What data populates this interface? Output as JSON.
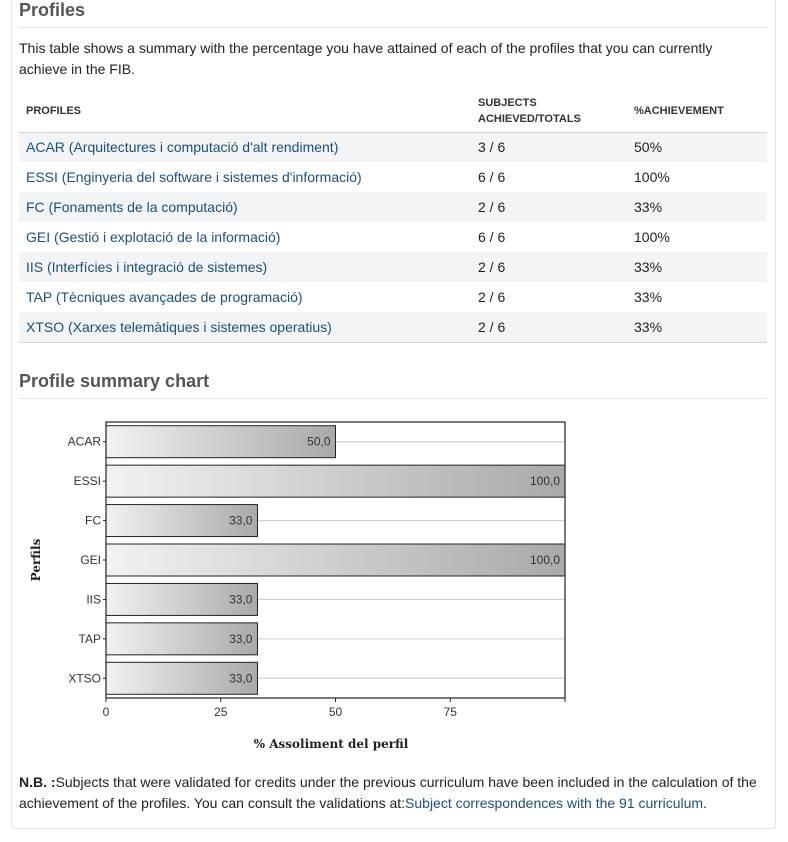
{
  "profiles_title": "Profiles",
  "intro_text": "This table shows a summary with the percentage you have attained of each of the profiles that you can currently achieve in the FIB.",
  "table": {
    "headers": {
      "profiles": "PROFILES",
      "subjects_line1": "SUBJECTS",
      "subjects_line2": "ACHIEVED/TOTALS",
      "achievement": "%ACHIEVEMENT"
    },
    "rows": [
      {
        "name": "ACAR (Arquitectures i computació d'alt rendiment)",
        "subjects": "3 / 6",
        "achievement": "50%"
      },
      {
        "name": "ESSI (Enginyeria del software i sistemes d'informació)",
        "subjects": "6 / 6",
        "achievement": "100%"
      },
      {
        "name": "FC (Fonaments de la computació)",
        "subjects": "2 / 6",
        "achievement": "33%"
      },
      {
        "name": "GEI (Gestió i explotació de la informació)",
        "subjects": "6 / 6",
        "achievement": "100%"
      },
      {
        "name": "IIS (Interfícies i integració de sistemes)",
        "subjects": "2 / 6",
        "achievement": "33%"
      },
      {
        "name": "TAP (Tècniques avançades de programació)",
        "subjects": "2 / 6",
        "achievement": "33%"
      },
      {
        "name": "XTSO (Xarxes telemàtiques i sistemes operatius)",
        "subjects": "2 / 6",
        "achievement": "33%"
      }
    ]
  },
  "chart_section_title": "Profile summary chart",
  "chart_data": {
    "type": "bar",
    "orientation": "horizontal",
    "categories": [
      "ACAR",
      "ESSI",
      "FC",
      "GEI",
      "IIS",
      "TAP",
      "XTSO"
    ],
    "values": [
      50.0,
      100.0,
      33.0,
      100.0,
      33.0,
      33.0,
      33.0
    ],
    "data_labels": [
      "50,0",
      "100,0",
      "33,0",
      "100,0",
      "33,0",
      "33,0",
      "33,0"
    ],
    "xlabel": "% Assoliment del perfil",
    "ylabel": "Perfils",
    "xlim": [
      0,
      100
    ],
    "xticks": [
      "0",
      "25",
      "50",
      "75"
    ],
    "grid": true,
    "colors": {
      "bar_light": "#f2f2f2",
      "bar_dark": "#a9a9a9"
    }
  },
  "note": {
    "prefix": "N.B. :",
    "text": "Subjects that were validated for credits under the previous curriculum have been included in the calculation of the achievement of the profiles. You can consult the validations at:",
    "link": "Subject correspondences with the 91 curriculum",
    "suffix": "."
  }
}
